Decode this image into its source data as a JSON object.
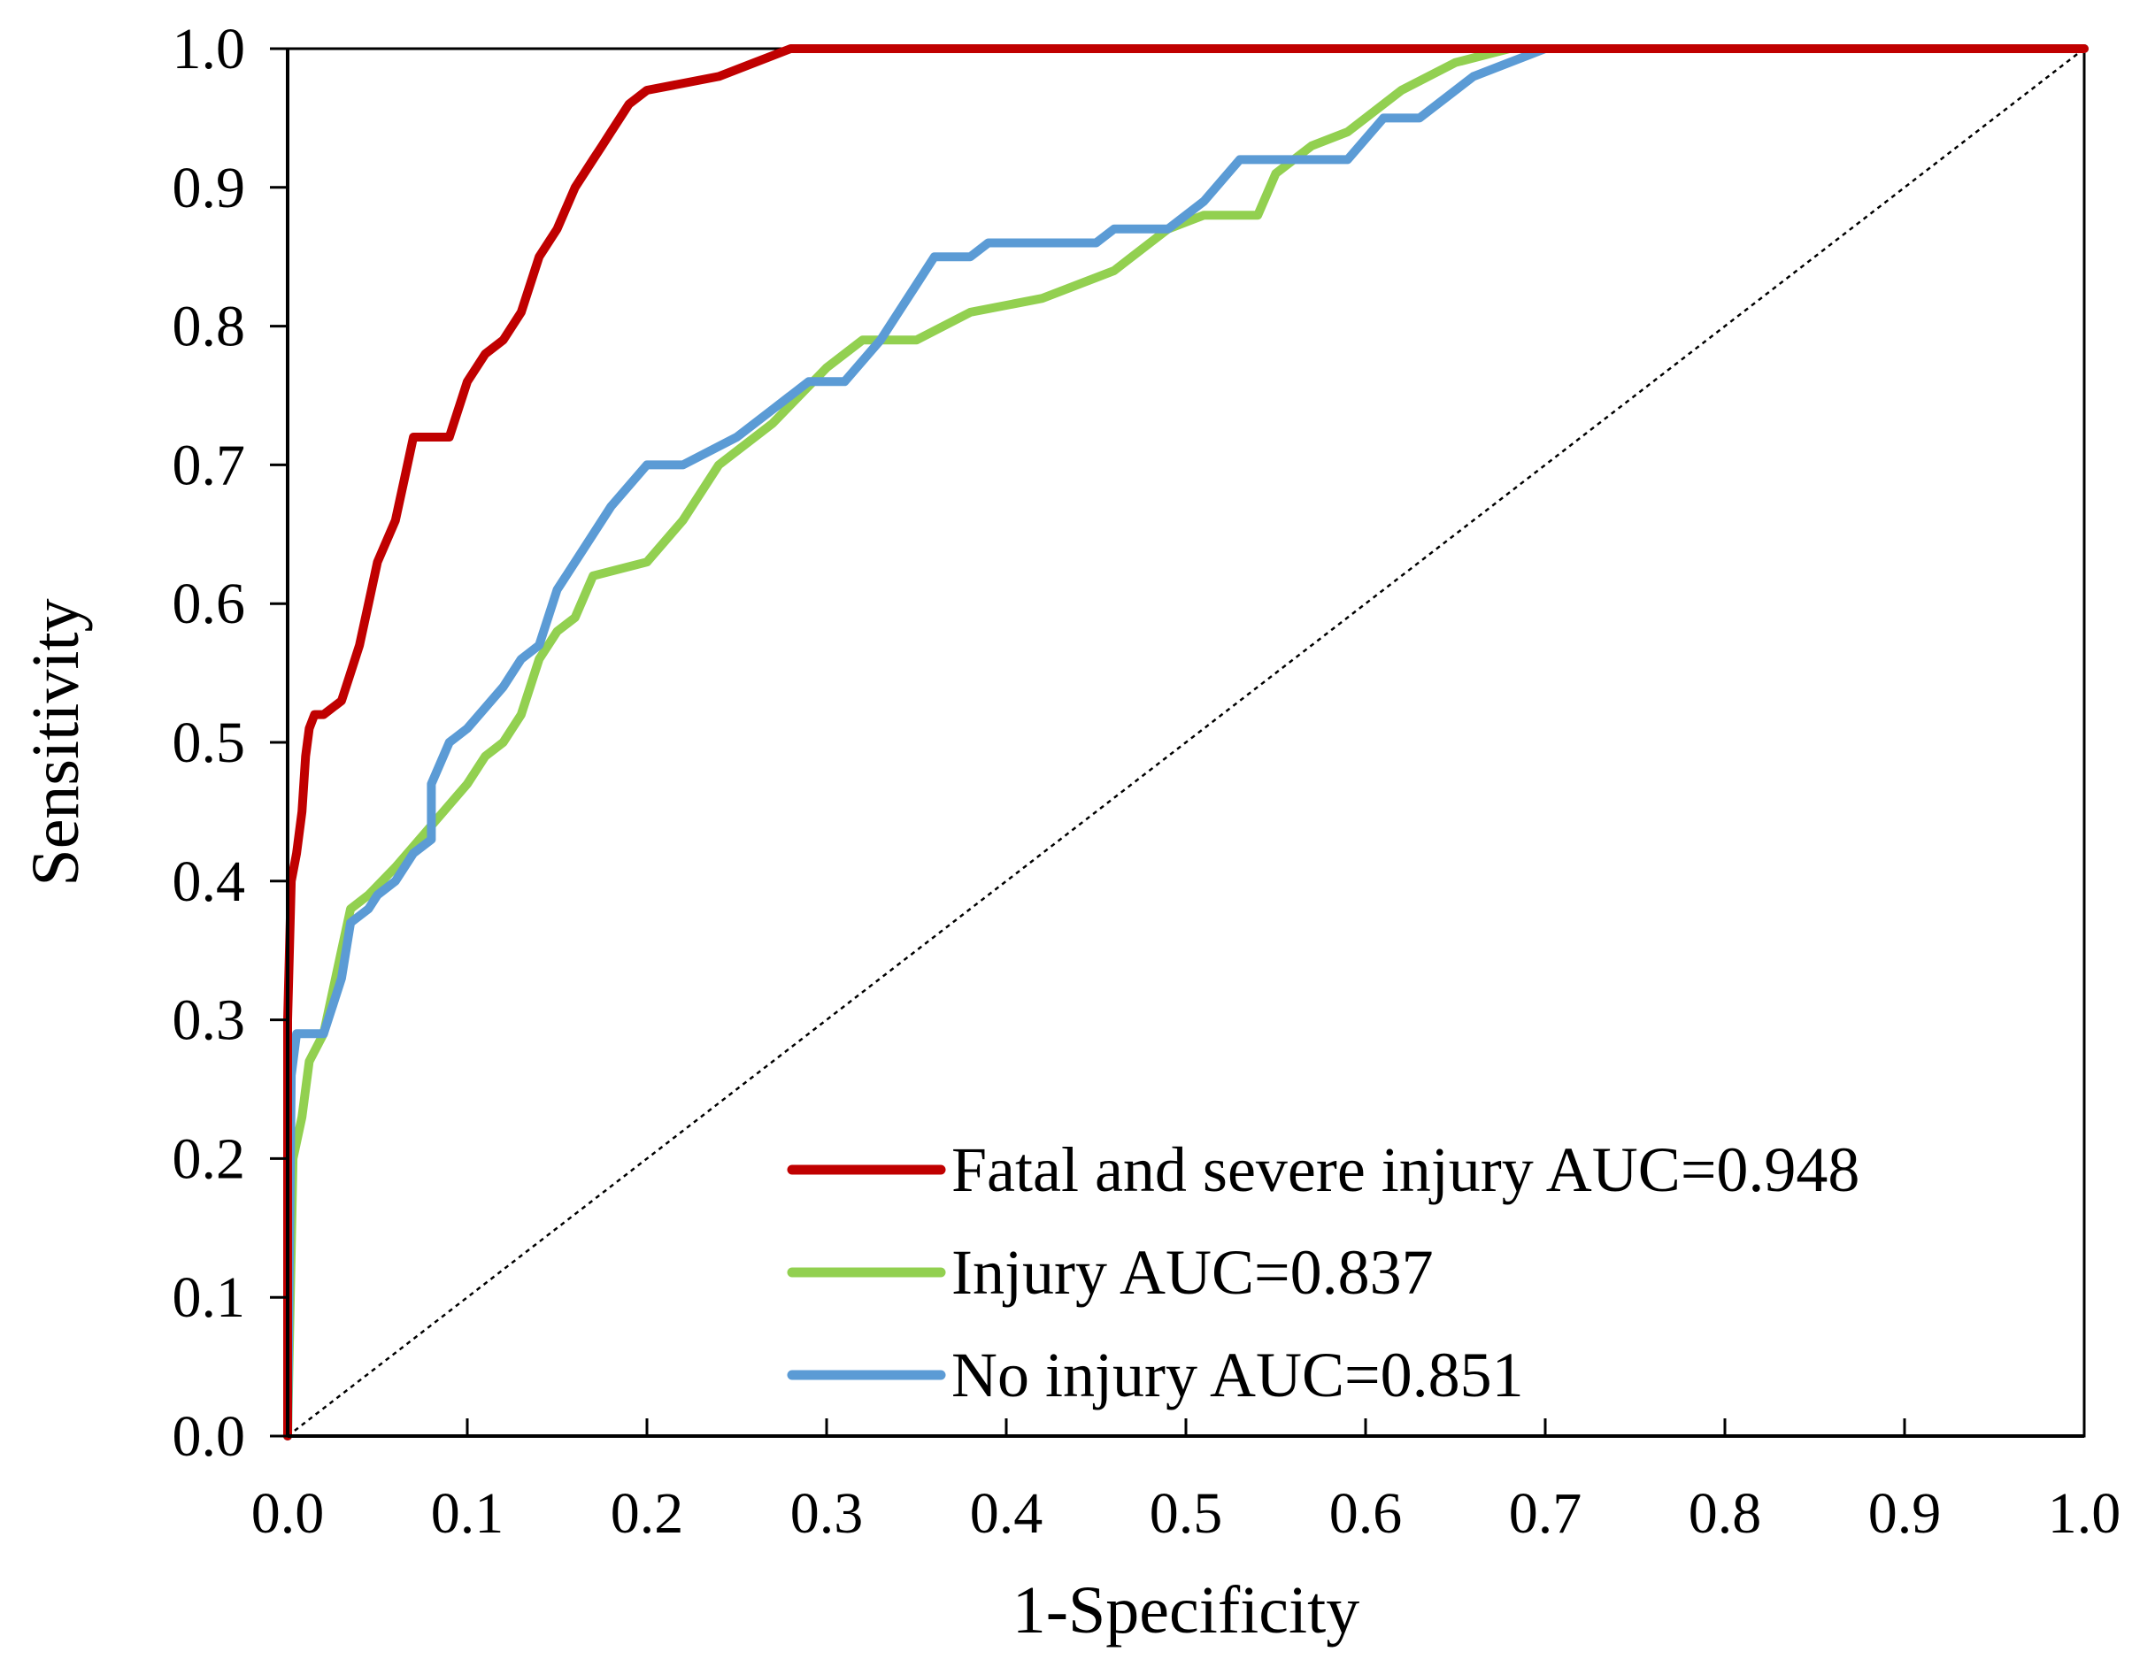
{
  "chart_data": {
    "type": "line",
    "title": "",
    "xlabel": "1-Specificity",
    "ylabel": "Sensitivity",
    "xlim": [
      0,
      1
    ],
    "ylim": [
      0,
      1
    ],
    "x_ticks": [
      "0.0",
      "0.1",
      "0.2",
      "0.3",
      "0.4",
      "0.5",
      "0.6",
      "0.7",
      "0.8",
      "0.9",
      "1.0"
    ],
    "y_ticks": [
      "0.0",
      "0.1",
      "0.2",
      "0.3",
      "0.4",
      "0.5",
      "0.6",
      "0.7",
      "0.8",
      "0.9",
      "1.0"
    ],
    "grid": false,
    "legend_position": "bottom-right",
    "reference_line": {
      "name": "chance",
      "points": [
        [
          0,
          0
        ],
        [
          1,
          1
        ]
      ],
      "color": "#000000",
      "style": "dotted"
    },
    "series": [
      {
        "name": "Fatal and severe injury",
        "label": "Fatal and severe injury AUC=0.948",
        "auc": 0.948,
        "color": "#c00000",
        "points": [
          [
            0,
            0
          ],
          [
            0,
            0.3
          ],
          [
            0.002,
            0.4
          ],
          [
            0.005,
            0.42
          ],
          [
            0.008,
            0.45
          ],
          [
            0.01,
            0.49
          ],
          [
            0.012,
            0.51
          ],
          [
            0.015,
            0.52
          ],
          [
            0.02,
            0.52
          ],
          [
            0.03,
            0.53
          ],
          [
            0.035,
            0.55
          ],
          [
            0.04,
            0.57
          ],
          [
            0.045,
            0.6
          ],
          [
            0.05,
            0.63
          ],
          [
            0.06,
            0.66
          ],
          [
            0.065,
            0.69
          ],
          [
            0.07,
            0.72
          ],
          [
            0.09,
            0.72
          ],
          [
            0.1,
            0.76
          ],
          [
            0.11,
            0.78
          ],
          [
            0.12,
            0.79
          ],
          [
            0.13,
            0.81
          ],
          [
            0.14,
            0.85
          ],
          [
            0.15,
            0.87
          ],
          [
            0.16,
            0.9
          ],
          [
            0.17,
            0.92
          ],
          [
            0.175,
            0.93
          ],
          [
            0.18,
            0.94
          ],
          [
            0.19,
            0.96
          ],
          [
            0.2,
            0.97
          ],
          [
            0.24,
            0.98
          ],
          [
            0.26,
            0.99
          ],
          [
            0.28,
            1.0
          ],
          [
            1,
            1
          ]
        ]
      },
      {
        "name": "Injury",
        "label": "Injury AUC=0.837",
        "auc": 0.837,
        "color": "#92d050",
        "points": [
          [
            0,
            0
          ],
          [
            0.003,
            0.2
          ],
          [
            0.008,
            0.23
          ],
          [
            0.012,
            0.27
          ],
          [
            0.02,
            0.29
          ],
          [
            0.03,
            0.35
          ],
          [
            0.035,
            0.38
          ],
          [
            0.045,
            0.39
          ],
          [
            0.06,
            0.41
          ],
          [
            0.08,
            0.44
          ],
          [
            0.1,
            0.47
          ],
          [
            0.11,
            0.49
          ],
          [
            0.12,
            0.5
          ],
          [
            0.13,
            0.52
          ],
          [
            0.14,
            0.56
          ],
          [
            0.15,
            0.58
          ],
          [
            0.16,
            0.59
          ],
          [
            0.17,
            0.62
          ],
          [
            0.2,
            0.63
          ],
          [
            0.22,
            0.66
          ],
          [
            0.24,
            0.7
          ],
          [
            0.27,
            0.73
          ],
          [
            0.3,
            0.77
          ],
          [
            0.32,
            0.79
          ],
          [
            0.35,
            0.79
          ],
          [
            0.38,
            0.81
          ],
          [
            0.42,
            0.82
          ],
          [
            0.46,
            0.84
          ],
          [
            0.49,
            0.87
          ],
          [
            0.51,
            0.88
          ],
          [
            0.54,
            0.88
          ],
          [
            0.55,
            0.91
          ],
          [
            0.57,
            0.93
          ],
          [
            0.59,
            0.94
          ],
          [
            0.62,
            0.97
          ],
          [
            0.65,
            0.99
          ],
          [
            0.68,
            1.0
          ],
          [
            1,
            1
          ]
        ]
      },
      {
        "name": "No injury",
        "label": "No injury AUC=0.851",
        "auc": 0.851,
        "color": "#5b9bd5",
        "points": [
          [
            0,
            0
          ],
          [
            0.002,
            0.26
          ],
          [
            0.005,
            0.29
          ],
          [
            0.02,
            0.29
          ],
          [
            0.025,
            0.31
          ],
          [
            0.03,
            0.33
          ],
          [
            0.035,
            0.37
          ],
          [
            0.045,
            0.38
          ],
          [
            0.05,
            0.39
          ],
          [
            0.06,
            0.4
          ],
          [
            0.07,
            0.42
          ],
          [
            0.08,
            0.43
          ],
          [
            0.08,
            0.47
          ],
          [
            0.09,
            0.5
          ],
          [
            0.1,
            0.51
          ],
          [
            0.12,
            0.54
          ],
          [
            0.13,
            0.56
          ],
          [
            0.14,
            0.57
          ],
          [
            0.15,
            0.61
          ],
          [
            0.16,
            0.63
          ],
          [
            0.18,
            0.67
          ],
          [
            0.2,
            0.7
          ],
          [
            0.22,
            0.7
          ],
          [
            0.25,
            0.72
          ],
          [
            0.27,
            0.74
          ],
          [
            0.29,
            0.76
          ],
          [
            0.31,
            0.76
          ],
          [
            0.33,
            0.79
          ],
          [
            0.35,
            0.83
          ],
          [
            0.36,
            0.85
          ],
          [
            0.38,
            0.85
          ],
          [
            0.39,
            0.86
          ],
          [
            0.45,
            0.86
          ],
          [
            0.46,
            0.87
          ],
          [
            0.49,
            0.87
          ],
          [
            0.51,
            0.89
          ],
          [
            0.53,
            0.92
          ],
          [
            0.59,
            0.92
          ],
          [
            0.61,
            0.95
          ],
          [
            0.63,
            0.95
          ],
          [
            0.66,
            0.98
          ],
          [
            0.68,
            0.99
          ],
          [
            0.7,
            1.0
          ],
          [
            1,
            1
          ]
        ]
      }
    ]
  }
}
